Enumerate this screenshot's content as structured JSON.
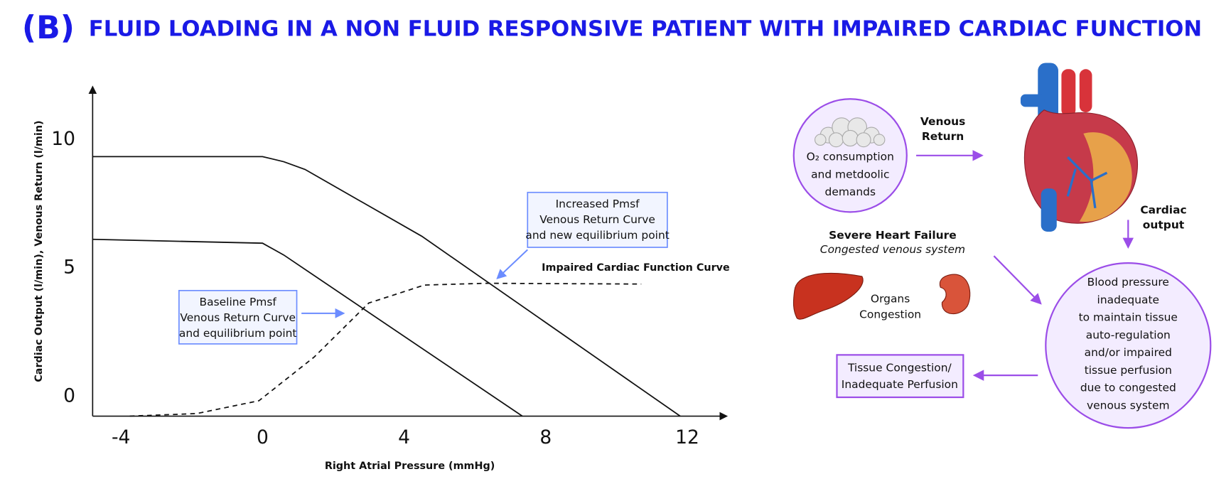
{
  "chart_data": {
    "type": "line",
    "panel": "(B)",
    "title": "FLUID LOADING IN A NON FLUID RESPONSIVE PATIENT WITH IMPAIRED CARDIAC FUNCTION",
    "x_label": "Right Atrial Pressure (mmHg)",
    "y_label": "Cardiac Output (l/min), Venous Return (l/min)",
    "xlim": [
      -4.8,
      13.1
    ],
    "xticks": [
      -4,
      0,
      4,
      8,
      12
    ],
    "ylim": [
      0,
      12.8
    ],
    "yticks": [
      0,
      5,
      10
    ],
    "grid": false,
    "series": [
      {
        "color": "#111111",
        "x": [
          -4.8,
          0,
          0.6,
          1.2,
          4.5,
          11.8
        ],
        "values": [
          10.1,
          10.1,
          9.9,
          9.6,
          7.0,
          0
        ]
      },
      {
        "color": "#111111",
        "x": [
          -4.8,
          0,
          0.6,
          7.34
        ],
        "values": [
          6.88,
          6.73,
          6.27,
          0
        ]
      },
      {
        "name": "Impaired Cardiac Function Curve",
        "color": "#111111",
        "dashed": true,
        "x": [
          -3.75,
          -1.86,
          -0.1,
          1.46,
          3.0,
          4.57,
          6.3,
          10.7
        ],
        "values": [
          0,
          0.1,
          0.6,
          2.3,
          4.4,
          5.1,
          5.17,
          5.14
        ]
      }
    ],
    "annotations": [
      {
        "lines": [
          "Baseline Pmsf",
          "Venous Return Curve",
          "and equilibrium point"
        ],
        "color": "#6b8cff"
      },
      {
        "lines": [
          "Increased Pmsf",
          "Venous Return Curve",
          "and new equilibrium point"
        ],
        "color": "#6b8cff"
      }
    ]
  },
  "diagram": {
    "demand": [
      "O₂ consumption",
      "and metdoolic",
      "demands"
    ],
    "venous_return": [
      "Venous",
      "Return"
    ],
    "cardiac_output": [
      "Cardiac",
      "output"
    ],
    "failure": {
      "title": "Severe Heart Failure",
      "subtitle": "Congested venous system"
    },
    "organs": [
      "Organs",
      "Congestion"
    ],
    "blood_pressure": [
      "Blood pressure",
      "inadequate",
      "to maintain tissue",
      "auto-regulation",
      "and/or impaired",
      "tissue perfusion",
      "due to congested",
      "venous system"
    ],
    "tissue": [
      "Tissue Congestion/",
      "Inadequate Perfusion"
    ]
  }
}
